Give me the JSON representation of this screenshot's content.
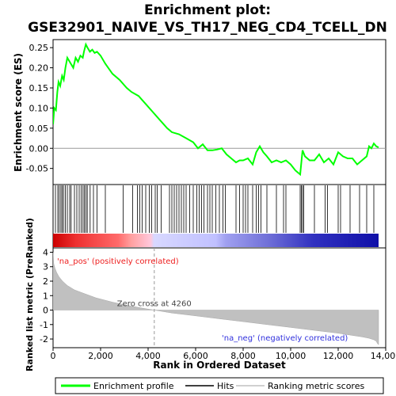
{
  "chart_data": {
    "type": "line",
    "title": "Enrichment plot:\nGSE32901_NAIVE_VS_TH17_NEG_CD4_TCELL_DN",
    "title_lines": [
      "Enrichment plot:",
      "GSE32901_NAIVE_VS_TH17_NEG_CD4_TCELL_DN"
    ],
    "xlabel": "Rank in Ordered Dataset",
    "xlim": [
      0,
      14000
    ],
    "xticks": [
      0,
      2000,
      4000,
      6000,
      8000,
      10000,
      12000,
      14000
    ],
    "xtick_labels": [
      "0",
      "2,000",
      "4,000",
      "6,000",
      "8,000",
      "10,000",
      "12,000",
      "14,000"
    ],
    "top_panel": {
      "ylabel": "Enrichment score (ES)",
      "ylim": [
        -0.09,
        0.27
      ],
      "yticks": [
        -0.05,
        0.0,
        0.05,
        0.1,
        0.15,
        0.2,
        0.25
      ],
      "ytick_labels": [
        "-0.05",
        "0.00",
        "0.05",
        "0.10",
        "0.15",
        "0.20",
        "0.25"
      ],
      "series": [
        {
          "name": "Enrichment profile",
          "color": "#00ff00",
          "x": [
            0,
            50,
            120,
            180,
            230,
            300,
            380,
            450,
            520,
            600,
            700,
            850,
            950,
            1050,
            1150,
            1250,
            1300,
            1380,
            1450,
            1550,
            1650,
            1750,
            1850,
            2000,
            2200,
            2500,
            2800,
            3100,
            3300,
            3600,
            3900,
            4200,
            4500,
            4800,
            5000,
            5300,
            5600,
            5900,
            6100,
            6300,
            6500,
            6700,
            6900,
            7100,
            7300,
            7500,
            7700,
            7850,
            8000,
            8200,
            8400,
            8550,
            8700,
            8850,
            9000,
            9200,
            9400,
            9600,
            9800,
            10000,
            10200,
            10400,
            10500,
            10600,
            10800,
            11000,
            11200,
            11400,
            11600,
            11800,
            12000,
            12200,
            12400,
            12600,
            12800,
            13000,
            13200,
            13300,
            13400,
            13500,
            13600,
            13700
          ],
          "y": [
            0.06,
            0.1,
            0.095,
            0.14,
            0.165,
            0.155,
            0.18,
            0.17,
            0.2,
            0.225,
            0.215,
            0.2,
            0.225,
            0.215,
            0.23,
            0.225,
            0.24,
            0.258,
            0.25,
            0.24,
            0.245,
            0.237,
            0.24,
            0.23,
            0.21,
            0.185,
            0.17,
            0.15,
            0.14,
            0.13,
            0.11,
            0.09,
            0.07,
            0.05,
            0.04,
            0.035,
            0.025,
            0.015,
            0.0,
            0.01,
            -0.005,
            -0.005,
            -0.003,
            0.0,
            -0.015,
            -0.025,
            -0.035,
            -0.03,
            -0.03,
            -0.025,
            -0.04,
            -0.01,
            0.005,
            -0.01,
            -0.02,
            -0.035,
            -0.03,
            -0.035,
            -0.03,
            -0.04,
            -0.055,
            -0.065,
            -0.005,
            -0.02,
            -0.03,
            -0.03,
            -0.015,
            -0.035,
            -0.025,
            -0.04,
            -0.01,
            -0.02,
            -0.025,
            -0.025,
            -0.04,
            -0.03,
            -0.02,
            0.005,
            0.0,
            0.012,
            0.005,
            0.002
          ]
        }
      ]
    },
    "hits_panel": {
      "hit_positions": [
        100,
        200,
        260,
        330,
        380,
        440,
        520,
        600,
        700,
        760,
        900,
        1000,
        1100,
        1180,
        1260,
        1320,
        1380,
        1440,
        1560,
        1700,
        1850,
        2200,
        2950,
        3350,
        3550,
        3650,
        3750,
        3900,
        4050,
        4150,
        4300,
        4380,
        4550,
        4900,
        5000,
        5100,
        5200,
        5300,
        5400,
        5500,
        5600,
        5750,
        5900,
        6050,
        6150,
        6250,
        6350,
        6500,
        6600,
        6700,
        6850,
        7000,
        7150,
        7250,
        7700,
        7850,
        8000,
        8100,
        8200,
        8400,
        8550,
        8650,
        8750,
        9000,
        9400,
        9700,
        9800,
        10400,
        10450,
        10500,
        10550,
        11000,
        11450,
        11550,
        12000,
        12100,
        12500,
        12900,
        13200,
        13500
      ]
    },
    "metric_panel": {
      "ylabel": "Ranked list metric (PreRanked)",
      "ylim": [
        -2.6,
        4.3
      ],
      "yticks": [
        -2,
        -1,
        0,
        1,
        2,
        3,
        4
      ],
      "ytick_labels": [
        "-2",
        "-1",
        "0",
        "1",
        "2",
        "3",
        "4"
      ],
      "zero_cross": 4260,
      "zero_cross_label": "Zero cross at 4260",
      "pos_label": "'na_pos' (positively correlated)",
      "neg_label": "'na_neg' (negatively correlated)",
      "color": "#c0c0c0",
      "x": [
        0,
        30,
        80,
        150,
        250,
        400,
        600,
        900,
        1300,
        1800,
        2500,
        3200,
        3800,
        4260,
        5000,
        6000,
        7000,
        8000,
        9000,
        10000,
        11000,
        12000,
        12600,
        13000,
        13300,
        13500,
        13600,
        13650,
        13700
      ],
      "y": [
        4.0,
        3.2,
        2.9,
        2.6,
        2.3,
        2.0,
        1.7,
        1.4,
        1.15,
        0.85,
        0.55,
        0.3,
        0.12,
        0.0,
        -0.2,
        -0.4,
        -0.6,
        -0.8,
        -1.0,
        -1.2,
        -1.4,
        -1.6,
        -1.75,
        -1.85,
        -1.95,
        -2.05,
        -2.15,
        -2.3,
        -2.4
      ]
    },
    "ranking_bar": {
      "stops": [
        {
          "at": 0.0,
          "color": "#cc0000"
        },
        {
          "at": 0.07,
          "color": "#ee3030"
        },
        {
          "at": 0.2,
          "color": "#ff6a6a"
        },
        {
          "at": 0.24,
          "color": "#ffa0a0"
        },
        {
          "at": 0.3,
          "color": "#ffc8dc"
        },
        {
          "at": 0.31,
          "color": "#d8d8ff"
        },
        {
          "at": 0.5,
          "color": "#c0c0ff"
        },
        {
          "at": 0.53,
          "color": "#a0a0f0"
        },
        {
          "at": 0.66,
          "color": "#7070d8"
        },
        {
          "at": 0.8,
          "color": "#3030c0"
        },
        {
          "at": 1.0,
          "color": "#1010a8"
        }
      ]
    },
    "legend": {
      "items": [
        {
          "label": "Enrichment profile",
          "color": "#00ff00"
        },
        {
          "label": "Hits",
          "color": "#000000"
        },
        {
          "label": "Ranking metric scores",
          "color": "#c0c0c0"
        }
      ]
    }
  }
}
